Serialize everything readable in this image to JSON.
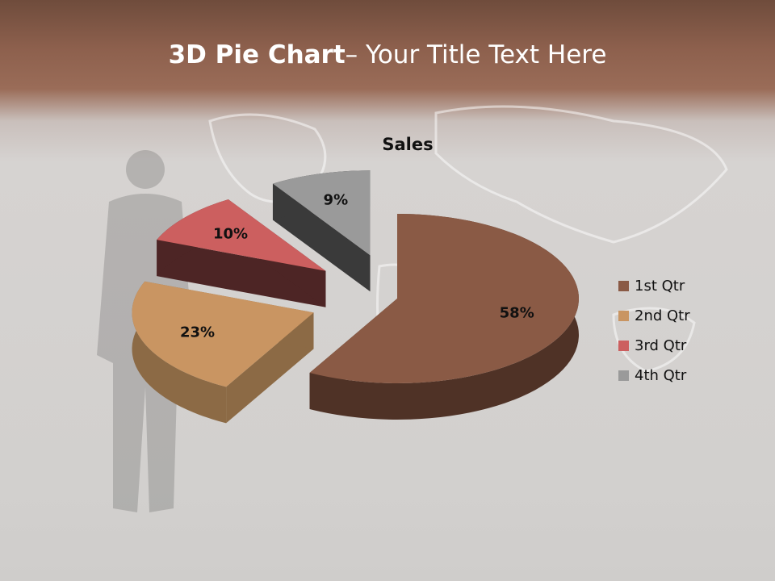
{
  "slide": {
    "title_bold": "3D Pie Chart",
    "title_rest": "– Your Title Text Here"
  },
  "chart_data": {
    "type": "pie",
    "title": "Sales",
    "categories": [
      "1st Qtr",
      "2nd Qtr",
      "3rd Qtr",
      "4th Qtr"
    ],
    "values": [
      58,
      23,
      10,
      9
    ],
    "data_labels": [
      "58%",
      "23%",
      "10%",
      "9%"
    ],
    "colors": [
      "#8a5a45",
      "#c99562",
      "#cc5f5f",
      "#9a9a9a"
    ],
    "side_colors": [
      "#4f3226",
      "#8c6a45",
      "#4d2525",
      "#3a3a3a"
    ],
    "style": "3d-exploded",
    "legend_position": "right"
  }
}
